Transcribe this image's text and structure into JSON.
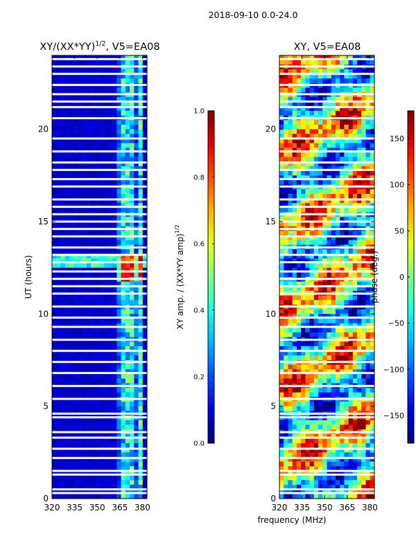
{
  "figure": {
    "suptitle": "2018-09-10 0.0-24.0",
    "xlabel_shared": "frequency (MHz)"
  },
  "chart_data": [
    {
      "type": "heatmap",
      "title": "XY/(XX*YY)^{1/2}, V5=EA08",
      "title_main": "XY/(XX*YY)",
      "title_sup": "1/2",
      "title_tail": ", V5=EA08",
      "xlabel": "frequency (MHz)",
      "ylabel": "UT (hours)",
      "xlim": [
        320,
        383
      ],
      "ylim": [
        0,
        24
      ],
      "xticks": [
        320,
        335,
        350,
        365,
        380
      ],
      "yticks": [
        0,
        5,
        10,
        15,
        20
      ],
      "colorbar": {
        "label": "XY amp. / (XX*YY amp)^{1/2}",
        "label_main": "XY amp. / (XX*YY amp)",
        "label_sup": "1/2",
        "range": [
          0.0,
          1.0
        ],
        "ticks": [
          "0.0",
          "0.2",
          "0.4",
          "0.6",
          "0.8",
          "1.0"
        ],
        "colormap": "jet"
      },
      "features": {
        "low_band_MHz": [
          320,
          362
        ],
        "low_band_value": 0.05,
        "high_band_MHz": [
          362,
          381
        ],
        "high_band_value": 0.38,
        "hot_rows_hours": [
          12.0,
          12.5,
          13.0
        ],
        "hot_value": 0.85
      }
    },
    {
      "type": "heatmap",
      "title": "XY, V5=EA08",
      "xlabel": "frequency (MHz)",
      "ylabel": "",
      "xlim": [
        320,
        383
      ],
      "ylim": [
        0,
        24
      ],
      "xticks": [
        320,
        335,
        350,
        365,
        380
      ],
      "yticks": [
        0,
        5,
        10,
        15,
        20
      ],
      "colorbar": {
        "label": "phase (deg.)",
        "range": [
          -180,
          180
        ],
        "ticks": [
          "150",
          "100",
          "50",
          "0",
          "−50",
          "−100",
          "−150"
        ],
        "tick_values": [
          150,
          100,
          50,
          0,
          -50,
          -100,
          -150
        ],
        "colormap": "jet"
      }
    }
  ],
  "flagged_rows_hours": [
    0.3,
    0.5,
    1.3,
    1.5,
    2.2,
    2.7,
    3.3,
    3.6,
    4.4,
    4.6,
    5.4,
    6.1,
    6.8,
    7.4,
    8.0,
    8.6,
    9.3,
    9.8,
    10.4,
    11.1,
    11.5,
    11.9,
    12.3,
    12.8,
    13.2,
    13.6,
    14.2,
    14.6,
    15.0,
    15.4,
    15.8,
    16.2,
    16.9,
    17.3,
    17.8,
    18.2,
    18.8,
    19.5,
    20.6,
    21.2,
    21.5,
    21.9,
    22.4,
    23.0,
    23.4,
    23.8
  ]
}
